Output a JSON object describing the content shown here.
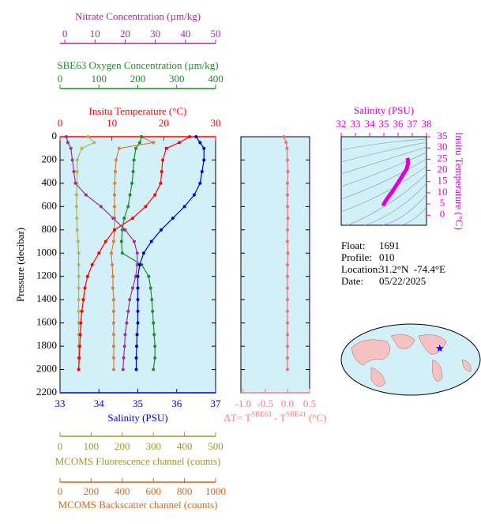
{
  "chart_data": [
    {
      "type": "profile",
      "y_label": "Pressure (decibar)",
      "y_inverted": true,
      "y_labels": true,
      "ylim": [
        0,
        2200
      ],
      "yticks": [
        0,
        200,
        400,
        600,
        800,
        1000,
        1200,
        1400,
        1600,
        1800,
        2000,
        2200
      ],
      "y": [
        0,
        50,
        100,
        200,
        300,
        400,
        500,
        600,
        700,
        800,
        900,
        1000,
        1100,
        1200,
        1300,
        1400,
        1500,
        1600,
        1700,
        1800,
        1900,
        2000
      ],
      "x_axes": [
        {
          "label": "Nitrate Concentration (µm/kg)",
          "color": "#993399",
          "xlim": [
            -1.6,
            50
          ],
          "xticks": [
            0,
            10,
            20,
            30,
            40,
            50
          ]
        },
        {
          "label": "SBE63 Oxygen Concentration (µm/kg)",
          "color": "#1a8f2a",
          "xlim": [
            0,
            400
          ],
          "xticks": [
            0,
            100,
            200,
            300,
            400
          ]
        },
        {
          "label": "Insitu Temperature (°C)",
          "color": "#ff0000",
          "xlim": [
            0,
            30
          ],
          "xticks": [
            0,
            10,
            20,
            30
          ]
        },
        {
          "label": "Salinity (PSU)",
          "color": "#0000cc",
          "xlim": [
            33,
            37
          ],
          "xticks": [
            33,
            34,
            35,
            36,
            37
          ]
        },
        {
          "label": "MCOMS Fluorescence channel (counts)",
          "color": "#9a9a2a",
          "xlim": [
            0,
            500
          ],
          "xticks": [
            0,
            100,
            200,
            300,
            400,
            500
          ]
        },
        {
          "label": "MCOMS Backscatter channel (counts)",
          "color": "#d2691e",
          "xlim": [
            0,
            1000
          ],
          "xticks": [
            0,
            200,
            400,
            600,
            800,
            1000
          ]
        }
      ],
      "series": [
        {
          "axis": 4,
          "color": "#b5b54a",
          "values": [
            90,
            110,
            70,
            55,
            55,
            54,
            53,
            53,
            54,
            55,
            58,
            60,
            60,
            60,
            60,
            60,
            60,
            60,
            60,
            60,
            60,
            60
          ]
        },
        {
          "axis": 5,
          "color": "#e07b39",
          "values": [
            520,
            600,
            380,
            360,
            355,
            352,
            350,
            350,
            352,
            350,
            345,
            330,
            335,
            340,
            340,
            345,
            345,
            345,
            345,
            345,
            345,
            345
          ]
        },
        {
          "axis": 1,
          "color": "#1a8f2a",
          "values": [
            210,
            205,
            195,
            190,
            188,
            185,
            180,
            175,
            165,
            160,
            158,
            160,
            210,
            228,
            233,
            236,
            238,
            240,
            242,
            244,
            244,
            240
          ]
        },
        {
          "axis": 0,
          "color": "#993399",
          "values": [
            0.5,
            1,
            2,
            2.5,
            3,
            3.5,
            7,
            12,
            16,
            20,
            23,
            24,
            24,
            23.5,
            22.5,
            21.5,
            21,
            20.5,
            20,
            19.8,
            19.5,
            19.3
          ]
        },
        {
          "axis": 2,
          "color": "#ff0000",
          "values": [
            25,
            23,
            20.5,
            19.8,
            19.6,
            19.4,
            18.3,
            16.5,
            14,
            10.5,
            8.8,
            7.5,
            6.2,
            5.3,
            4.8,
            4.5,
            4.2,
            4.0,
            3.9,
            3.8,
            3.7,
            3.6
          ]
        },
        {
          "axis": 3,
          "color": "#0000cc",
          "values": [
            36.5,
            36.6,
            36.7,
            36.7,
            36.65,
            36.6,
            36.45,
            36.2,
            35.9,
            35.6,
            35.35,
            35.15,
            35.05,
            35.0,
            35.0,
            35.0,
            35.0,
            35.0,
            34.98,
            34.97,
            34.96,
            34.96
          ]
        }
      ]
    },
    {
      "type": "profile",
      "y_inverted": true,
      "y_labels": false,
      "ylim": [
        0,
        2200
      ],
      "yticks": [
        0,
        200,
        400,
        600,
        800,
        1000,
        1200,
        1400,
        1600,
        1800,
        2000,
        2200
      ],
      "y": [
        0,
        50,
        100,
        200,
        300,
        400,
        500,
        600,
        700,
        800,
        900,
        1000,
        1100,
        1200,
        1300,
        1400,
        1500,
        1600,
        1700,
        1800,
        1900,
        2000
      ],
      "x_axes": [
        {
          "label_parts": [
            "ΔT= T",
            "SBE63",
            " - T",
            "SBE41",
            " (°C)"
          ],
          "color": "#f08080",
          "xlim": [
            -1.05,
            0.5
          ],
          "xticks": [
            {
              "value": -1,
              "label": "-1.0"
            },
            -0.5,
            {
              "value": 0,
              "label": "0.0"
            },
            0.5
          ]
        }
      ],
      "series": [
        {
          "axis": 0,
          "color": "#f07070",
          "values": [
            -0.08,
            -0.03,
            -0.01,
            0.0,
            0.01,
            0.0,
            0.0,
            0.0,
            0.01,
            0.0,
            0.0,
            0.01,
            0.0,
            0.0,
            0.0,
            0.0,
            0.0,
            0.0,
            0.0,
            0.0,
            0.0,
            0.0
          ]
        }
      ]
    },
    {
      "type": "ts",
      "x_label": "Salinity (PSU)",
      "y_label": "Insitu Temperature (°C)",
      "color": "#dd00dd",
      "xlim": [
        32,
        38
      ],
      "xticks": [
        32,
        33,
        34,
        35,
        36,
        37,
        38
      ],
      "ylim": [
        -4.5,
        35
      ],
      "yticks": [
        0,
        5,
        10,
        15,
        20,
        25,
        30,
        35
      ],
      "x": [
        34.97,
        35.0,
        35.1,
        35.3,
        35.6,
        35.9,
        36.1,
        36.3,
        36.5,
        36.6,
        36.65,
        36.7,
        36.7,
        36.65
      ],
      "values": [
        4.1,
        5,
        6,
        8,
        10.5,
        13.5,
        15.5,
        17.5,
        19.5,
        20.5,
        21.8,
        23,
        24.5,
        25.5
      ]
    }
  ],
  "float_info": [
    {
      "label": "Float:",
      "value": "1691"
    },
    {
      "label": "Profile:",
      "value": "010"
    },
    {
      "label": "Location:",
      "value": "31.2°N  -74.4°E"
    },
    {
      "label": "Date:",
      "value": "05/22/2025"
    }
  ]
}
